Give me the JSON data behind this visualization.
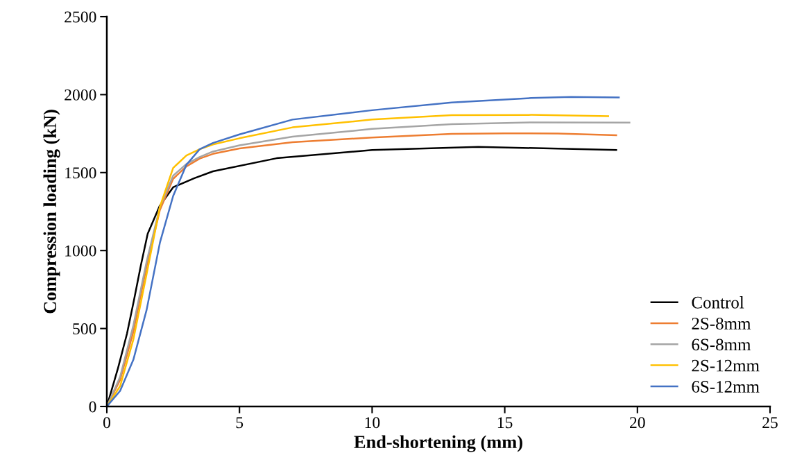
{
  "chart_data": {
    "type": "line",
    "xlabel": "End-shortening (mm)",
    "ylabel": "Compression loading (kN)",
    "xlim": [
      0,
      25
    ],
    "xticks": [
      0,
      5,
      10,
      15,
      20,
      25
    ],
    "ylim": [
      0,
      2500
    ],
    "yticks": [
      0,
      500,
      1000,
      1500,
      2000,
      2500
    ],
    "grid": false,
    "legend": "bottom right",
    "marker": "none",
    "line_style": "solid",
    "series": [
      {
        "name": "Control",
        "color": "#000000",
        "x": [
          0,
          0.42,
          0.76,
          1.02,
          1.28,
          1.54,
          1.99,
          2.5,
          3.3,
          4.0,
          6.4,
          10,
          14,
          19.2
        ],
        "values": [
          0,
          245,
          467,
          680,
          903,
          1108,
          1286,
          1406,
          1464,
          1508,
          1592,
          1645,
          1665,
          1645
        ]
      },
      {
        "name": "2S-8mm",
        "color": "#ed7d31",
        "x": [
          0,
          0.5,
          1,
          1.5,
          2,
          2.5,
          3,
          3.5,
          4,
          5,
          7,
          10,
          13,
          15,
          17,
          19.2
        ],
        "values": [
          0,
          170,
          480,
          900,
          1260,
          1460,
          1540,
          1590,
          1620,
          1655,
          1695,
          1725,
          1748,
          1752,
          1750,
          1740
        ]
      },
      {
        "name": "6S-8mm",
        "color": "#a5a5a5",
        "x": [
          0,
          0.5,
          1,
          1.5,
          2,
          2.5,
          3,
          3.5,
          4,
          5,
          7,
          10,
          13,
          16,
          19.7
        ],
        "values": [
          0,
          190,
          520,
          930,
          1280,
          1480,
          1555,
          1600,
          1635,
          1675,
          1730,
          1780,
          1810,
          1822,
          1820
        ]
      },
      {
        "name": "2S-12mm",
        "color": "#ffc000",
        "x": [
          0,
          0.5,
          1,
          1.5,
          2,
          2.5,
          3,
          3.5,
          4,
          5,
          7,
          10,
          13,
          16,
          18.9
        ],
        "values": [
          0,
          130,
          430,
          850,
          1280,
          1530,
          1610,
          1650,
          1680,
          1720,
          1790,
          1840,
          1868,
          1870,
          1862
        ]
      },
      {
        "name": "6S-12mm",
        "color": "#4472c4",
        "x": [
          0,
          0.5,
          1,
          1.5,
          2,
          2.5,
          3,
          3.5,
          4,
          5,
          7,
          10,
          13,
          16,
          17.5,
          19.3
        ],
        "values": [
          0,
          100,
          300,
          620,
          1050,
          1350,
          1550,
          1650,
          1690,
          1745,
          1840,
          1900,
          1950,
          1978,
          1985,
          1982
        ]
      }
    ]
  }
}
